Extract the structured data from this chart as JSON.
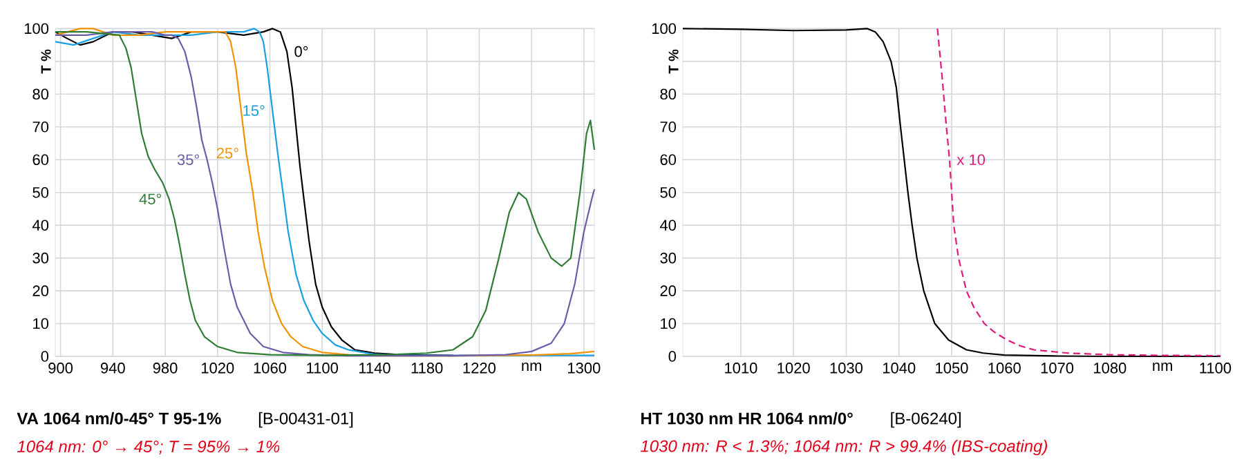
{
  "chart_data": [
    {
      "type": "line",
      "title": "VA 1064 nm/0-45°  T 95-1%",
      "subtitle": "1064 nm: 0° → 45°; T = 95% → 1%",
      "ylabel": "T %",
      "annotations": [
        "[B-00431-01]"
      ],
      "grid": true,
      "line_style": "solid",
      "xlim": [
        896,
        1308
      ],
      "ylim": [
        0,
        100
      ],
      "xticks": [
        900,
        940,
        980,
        1020,
        1060,
        1100,
        1140,
        1180,
        1220,
        {
          "value": 1260,
          "label": "nm"
        },
        1300
      ],
      "yticks": [
        0,
        10,
        20,
        30,
        40,
        50,
        60,
        70,
        80,
        {
          "value": 90,
          "label": null
        },
        100
      ],
      "series": [
        {
          "name": "0°",
          "color": "#000000",
          "x": [
            896,
            905,
            915,
            925,
            940,
            955,
            970,
            985,
            1000,
            1020,
            1040,
            1055,
            1062,
            1068,
            1073,
            1077,
            1080,
            1083,
            1086,
            1090,
            1095,
            1100,
            1107,
            1115,
            1125,
            1140,
            1160,
            1200
          ],
          "values": [
            99,
            97,
            95,
            96,
            99,
            99,
            98,
            97,
            99,
            99,
            98,
            99,
            100,
            99,
            93,
            82,
            70,
            58,
            48,
            35,
            22,
            15,
            9,
            5,
            2,
            1,
            0.5,
            0.3
          ]
        },
        {
          "name": "15°",
          "color": "#1a9fe0",
          "x": [
            896,
            910,
            925,
            940,
            960,
            980,
            1000,
            1020,
            1040,
            1048,
            1052,
            1055,
            1058,
            1062,
            1066,
            1070,
            1074,
            1080,
            1086,
            1093,
            1100,
            1110,
            1120,
            1140,
            1160,
            1308
          ],
          "values": [
            96,
            95,
            97,
            99,
            98,
            98,
            98,
            99,
            99,
            100,
            99,
            96,
            88,
            75,
            62,
            50,
            38,
            25,
            17,
            11,
            7,
            3.5,
            2,
            0.6,
            0.3,
            0.3
          ]
        },
        {
          "name": "25°",
          "color": "#f39200",
          "x": [
            896,
            915,
            925,
            940,
            960,
            980,
            1000,
            1020,
            1026,
            1030,
            1034,
            1038,
            1042,
            1047,
            1051,
            1056,
            1062,
            1069,
            1076,
            1085,
            1100,
            1120,
            1140,
            1200,
            1260,
            1290,
            1308
          ],
          "values": [
            98,
            100,
            100,
            98,
            98,
            99,
            99,
            99,
            99,
            96,
            88,
            75,
            62,
            50,
            38,
            27,
            17,
            10,
            6,
            3,
            1.2,
            0.5,
            0.2,
            0.2,
            0.4,
            0.8,
            1.5
          ]
        },
        {
          "name": "35°",
          "color": "#6c5ca8",
          "x": [
            896,
            920,
            940,
            970,
            980,
            985,
            990,
            995,
            1000,
            1004,
            1008,
            1012,
            1016,
            1020,
            1025,
            1030,
            1035,
            1040,
            1045,
            1055,
            1070,
            1090,
            1120,
            1200,
            1240,
            1260,
            1275,
            1285,
            1293,
            1300,
            1306,
            1308
          ],
          "values": [
            98,
            98,
            99,
            99,
            98,
            98,
            97,
            93,
            85,
            76,
            66,
            60,
            53,
            45,
            33,
            22,
            15,
            11,
            7,
            3,
            1.2,
            0.5,
            0.2,
            0.2,
            0.5,
            1.5,
            4,
            10,
            22,
            38,
            48,
            51
          ]
        },
        {
          "name": "45°",
          "color": "#2e7d32",
          "x": [
            896,
            920,
            945,
            950,
            954,
            958,
            962,
            967,
            972,
            978,
            983,
            987,
            991,
            995,
            999,
            1003,
            1010,
            1020,
            1035,
            1060,
            1100,
            1150,
            1180,
            1200,
            1215,
            1225,
            1235,
            1243,
            1250,
            1256,
            1265,
            1275,
            1283,
            1290,
            1297,
            1302,
            1305,
            1308
          ],
          "values": [
            99,
            99,
            98,
            94,
            88,
            78,
            68,
            61,
            57,
            53,
            48,
            42,
            34,
            25,
            17,
            11,
            6,
            3,
            1.2,
            0.5,
            0.3,
            0.5,
            1,
            2,
            6,
            14,
            30,
            44,
            50,
            48,
            38,
            30,
            27.5,
            30,
            50,
            68,
            72,
            63
          ]
        }
      ]
    },
    {
      "type": "line",
      "title": "HT 1030 nm HR 1064 nm/0°",
      "subtitle": "1030 nm: R < 1.3%; 1064 nm: R > 99.4% (IBS-coating)",
      "ylabel": "T %",
      "annotations": [
        "[B-06240]"
      ],
      "grid": true,
      "xlim": [
        999,
        1101
      ],
      "ylim": [
        0,
        100
      ],
      "xticks": [
        1010,
        1020,
        1030,
        1040,
        1050,
        1060,
        1070,
        1080,
        {
          "value": 1090,
          "label": "nm"
        },
        1100
      ],
      "yticks": [
        0,
        10,
        20,
        30,
        40,
        50,
        60,
        70,
        80,
        {
          "value": 90,
          "label": null
        },
        100
      ],
      "series": [
        {
          "color": "#000000",
          "line_style": "solid",
          "x": [
            999,
            1010,
            1020,
            1030,
            1034,
            1035.5,
            1037,
            1038.5,
            1039.5,
            1040.3,
            1041,
            1041.7,
            1042.5,
            1043.4,
            1044.7,
            1046.8,
            1049.4,
            1052.8,
            1056,
            1060,
            1070,
            1080,
            1101
          ],
          "values": [
            100,
            99.8,
            99.4,
            99.6,
            100,
            99,
            96,
            90,
            82,
            70,
            60,
            50,
            40,
            30,
            20,
            10,
            5,
            2,
            1,
            0.4,
            0.1,
            0,
            0
          ]
        },
        {
          "name": "x 10",
          "color": "#e0197d",
          "line_style": "dashed",
          "x": [
            1047.3,
            1048.2,
            1049,
            1049.6,
            1050.4,
            1051.3,
            1052.8,
            1054.2,
            1056.2,
            1058,
            1060.5,
            1063,
            1065.6,
            1072,
            1080,
            1090,
            1101
          ],
          "values": [
            100,
            85,
            70,
            60,
            40,
            30,
            20,
            15,
            10,
            7.5,
            5,
            3.2,
            2,
            1,
            0.5,
            0.3,
            0.2
          ]
        }
      ]
    }
  ]
}
